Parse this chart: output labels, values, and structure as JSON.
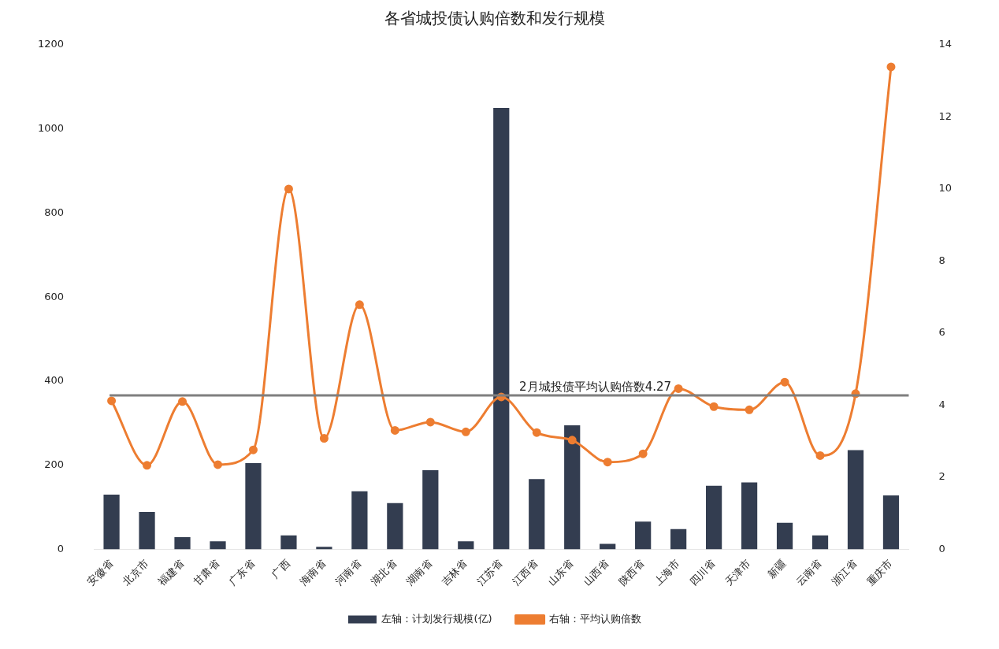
{
  "chart_data": {
    "type": "bar",
    "title": "各省城投债认购倍数和发行规模",
    "categories": [
      "安徽省",
      "北京市",
      "福建省",
      "甘肃省",
      "广东省",
      "广西",
      "海南省",
      "河南省",
      "湖北省",
      "湖南省",
      "吉林省",
      "江苏省",
      "江西省",
      "山东省",
      "山西省",
      "陕西省",
      "上海市",
      "四川省",
      "天津市",
      "新疆",
      "云南省",
      "浙江省",
      "重庆市"
    ],
    "series": [
      {
        "name": "左轴：计划发行规模(亿)",
        "color": "#333d50",
        "values": [
          130,
          89,
          29,
          19,
          205,
          33,
          6,
          138,
          110,
          188,
          19,
          1050,
          167,
          295,
          13,
          66,
          48,
          151,
          159,
          63,
          33,
          236,
          128
        ]
      },
      {
        "name": "右轴：平均认购倍数",
        "type": "line",
        "axis": "y2",
        "color": "#ed7d31",
        "marker": "circle",
        "values": [
          4.12,
          2.33,
          4.1,
          2.35,
          2.76,
          10.0,
          3.08,
          6.79,
          3.3,
          3.53,
          3.26,
          4.23,
          3.24,
          3.03,
          2.42,
          2.65,
          4.46,
          3.96,
          3.87,
          4.64,
          2.6,
          4.32,
          13.39
        ]
      }
    ],
    "ylim": [
      0,
      1200
    ],
    "yticks": [
      0,
      200,
      400,
      600,
      800,
      1000,
      1200
    ],
    "y2lim": [
      0,
      14
    ],
    "y2ticks": [
      0,
      2,
      4,
      6,
      8,
      10,
      12,
      14
    ],
    "ref_lines": [
      {
        "axis": "y2",
        "value": 4.27,
        "label": "2月城投债平均认购倍数4.27",
        "color": "#7f7f7f"
      }
    ],
    "grid": false,
    "legend": "bottom"
  }
}
